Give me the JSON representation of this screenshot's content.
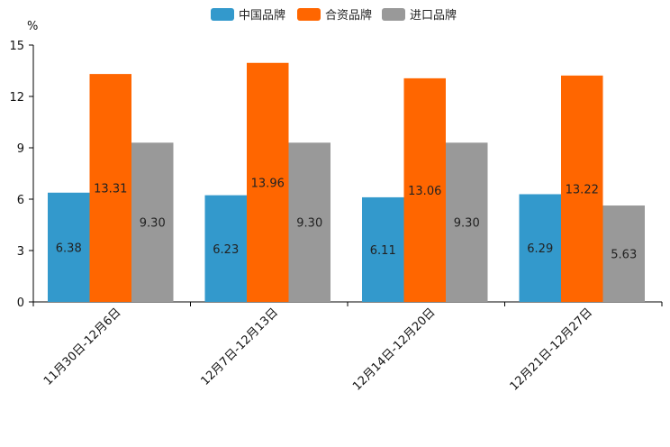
{
  "chart_data": {
    "type": "bar",
    "title": "",
    "xlabel": "",
    "ylabel": "%",
    "ylim": [
      0,
      15
    ],
    "yticks": [
      0,
      3,
      6,
      9,
      12,
      15
    ],
    "grid": false,
    "legend_position": "top-center",
    "categories": [
      "11月30日-12月6日",
      "12月7日-12月13日",
      "12月14日-12月20日",
      "12月21日-12月27日"
    ],
    "series": [
      {
        "name": "中国品牌",
        "color": "#3399cc",
        "values": [
          6.38,
          6.23,
          6.11,
          6.29
        ],
        "labels": [
          "6.38",
          "6.23",
          "6.11",
          "6.29"
        ]
      },
      {
        "name": "合资品牌",
        "color": "#ff6600",
        "values": [
          13.31,
          13.96,
          13.06,
          13.22
        ],
        "labels": [
          "13.31",
          "13.96",
          "13.06",
          "13.22"
        ]
      },
      {
        "name": "进口品牌",
        "color": "#999999",
        "values": [
          9.3,
          9.3,
          9.3,
          5.63
        ],
        "labels": [
          "9.30",
          "9.30",
          "9.30",
          "5.63"
        ]
      }
    ]
  }
}
